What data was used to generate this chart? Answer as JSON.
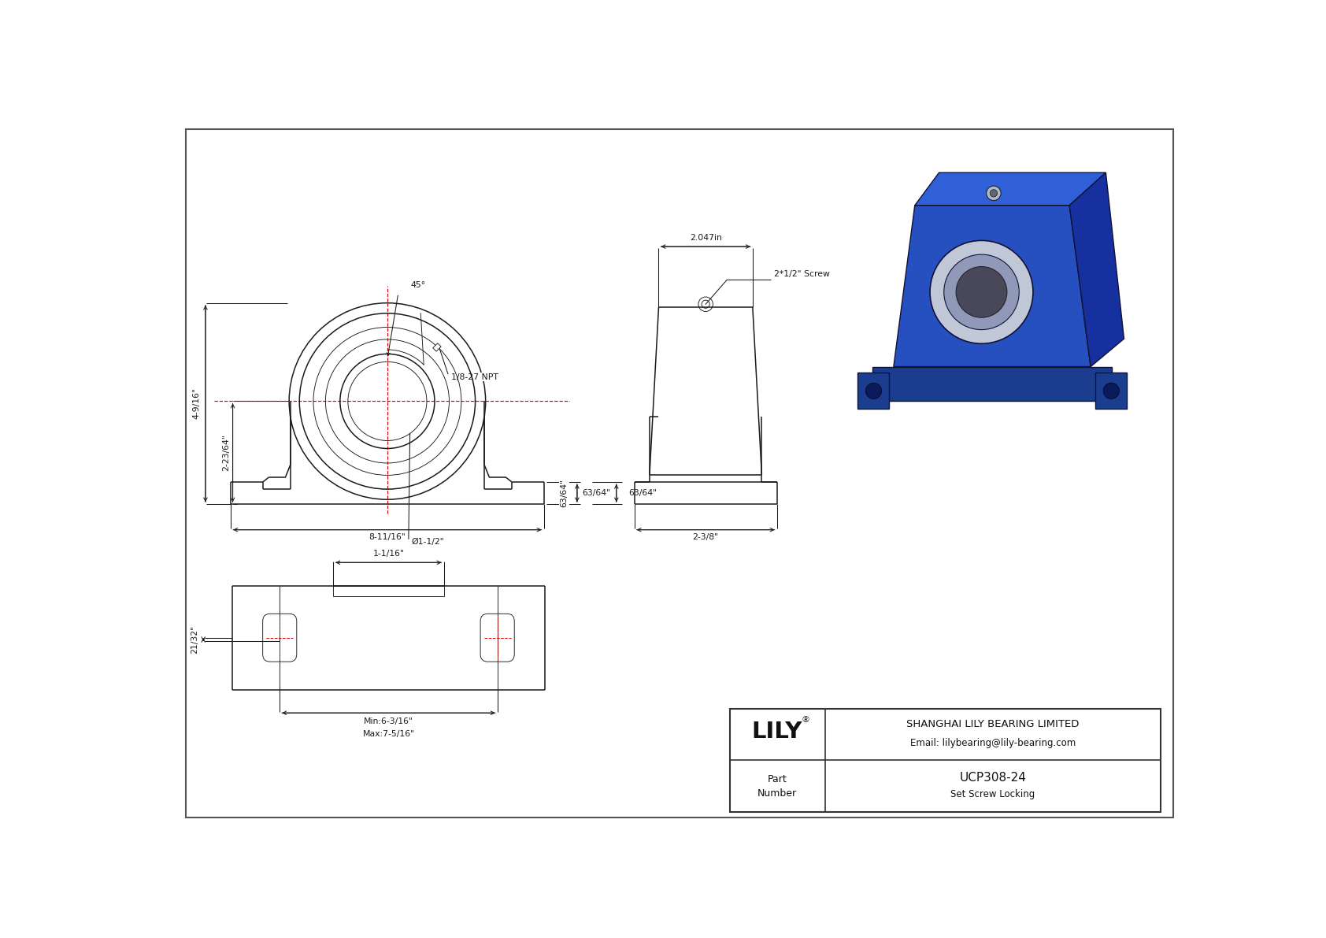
{
  "bg_color": "#ffffff",
  "border_color": "#444444",
  "line_color": "#1a1a1a",
  "dim_color": "#1a1a1a",
  "red_line_color": "#dd0000",
  "company": "SHANGHAI LILY BEARING LIMITED",
  "email": "Email: lilybearing@lily-bearing.com",
  "part_number": "UCP308-24",
  "locking": "Set Screw Locking",
  "part_label": "Part\nNumber",
  "dims": {
    "height_total": "4-9/16\"",
    "height_base": "2-23/64\"",
    "width_total": "8-11/16\"",
    "bore_dia": "Ø1-1/2\"",
    "angle": "45°",
    "npt": "1/8-27 NPT",
    "side_width": "2.047in",
    "screw": "2*1/2\" Screw",
    "base_height": "63/64\"",
    "side_depth": "2-3/8\"",
    "bolt_slot_min": "Min:6-3/16\"",
    "bolt_slot_max": "Max:7-5/16\"",
    "bolt_offset": "21/32\"",
    "bolt_width": "1-1/16\""
  }
}
